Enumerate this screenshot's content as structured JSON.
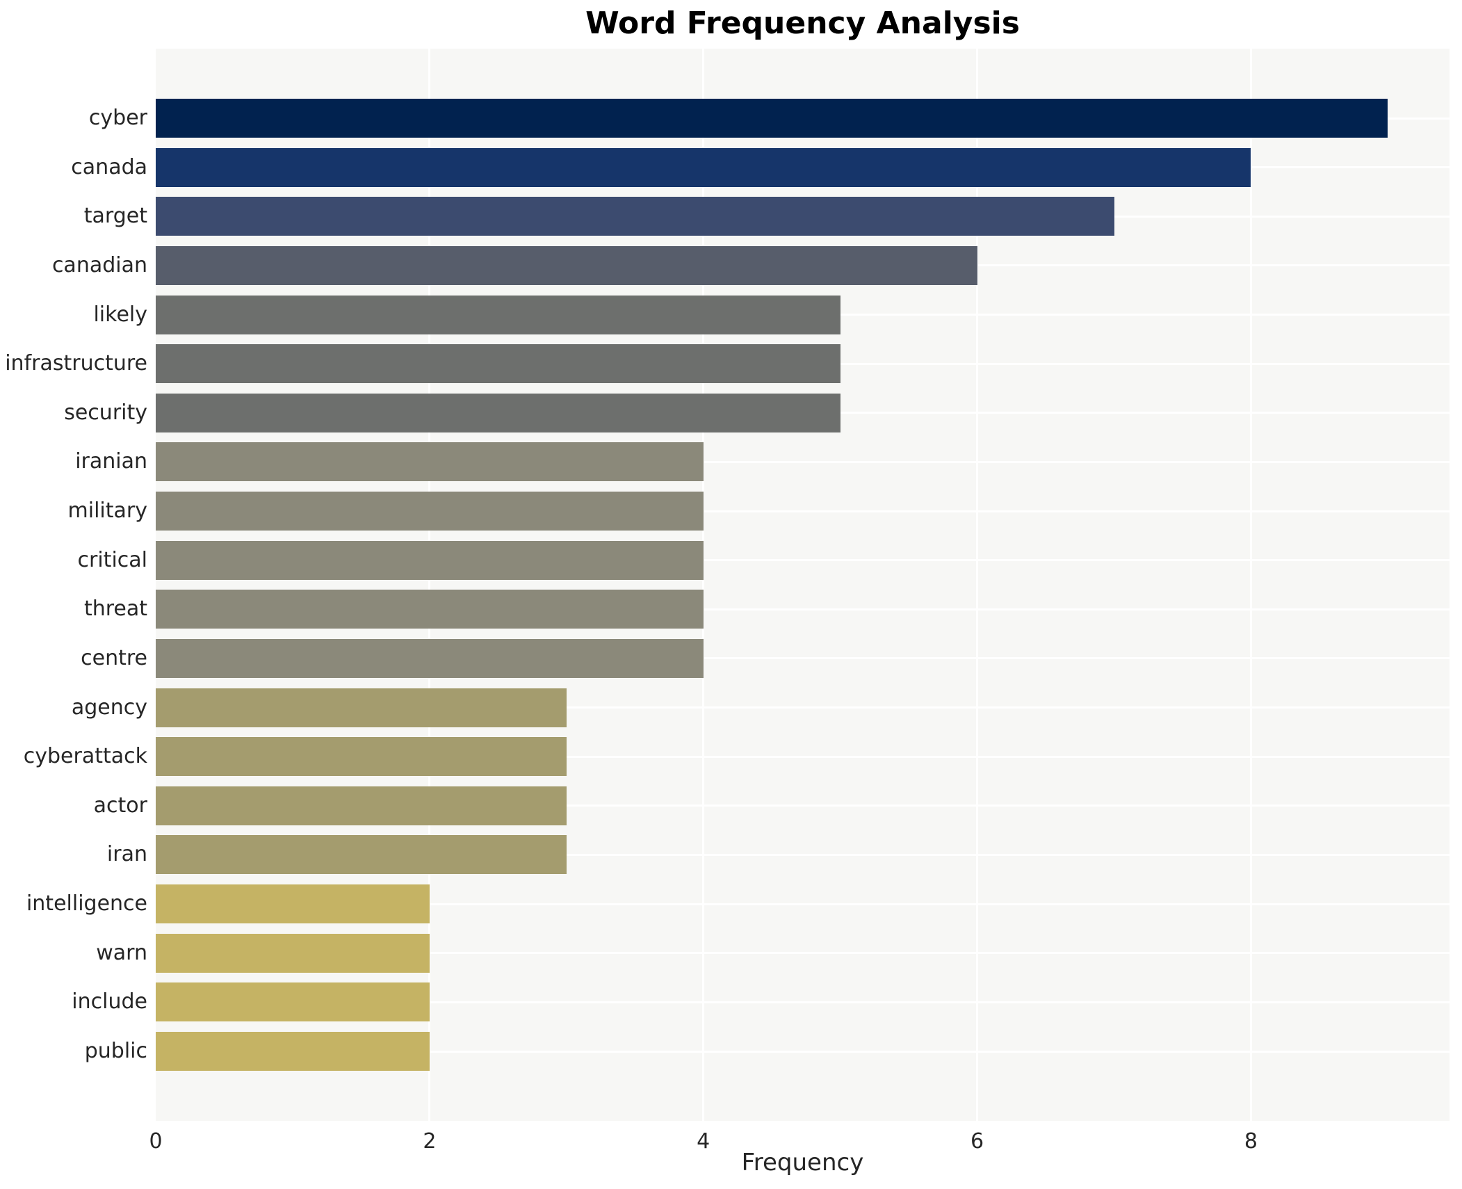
{
  "title": "Word Frequency Analysis",
  "x_axis_label": "Frequency",
  "chart_data": {
    "type": "bar",
    "orientation": "horizontal",
    "title": "Word Frequency Analysis",
    "xlabel": "Frequency",
    "ylabel": "",
    "categories": [
      "cyber",
      "canada",
      "target",
      "canadian",
      "likely",
      "infrastructure",
      "security",
      "iranian",
      "military",
      "critical",
      "threat",
      "centre",
      "agency",
      "cyberattack",
      "actor",
      "iran",
      "intelligence",
      "warn",
      "include",
      "public"
    ],
    "values": [
      9,
      8,
      7,
      6,
      5,
      5,
      5,
      4,
      4,
      4,
      4,
      4,
      3,
      3,
      3,
      3,
      2,
      2,
      2,
      2
    ],
    "bar_colors": [
      "#01224f",
      "#16356a",
      "#3c4b6f",
      "#575d6b",
      "#6d6f6d",
      "#6d6f6d",
      "#6d6f6d",
      "#8b897a",
      "#8b897a",
      "#8b897a",
      "#8b897a",
      "#8b897a",
      "#a49c6e",
      "#a49c6e",
      "#a49c6e",
      "#a49c6e",
      "#c5b364",
      "#c5b364",
      "#c5b364",
      "#c5b364"
    ],
    "x_ticks": [
      0,
      2,
      4,
      6,
      8
    ],
    "xlim": [
      0,
      9.45
    ],
    "grid": true,
    "grid_color": "#ffffff",
    "plot_background": "#f7f7f5",
    "legend": "none"
  }
}
